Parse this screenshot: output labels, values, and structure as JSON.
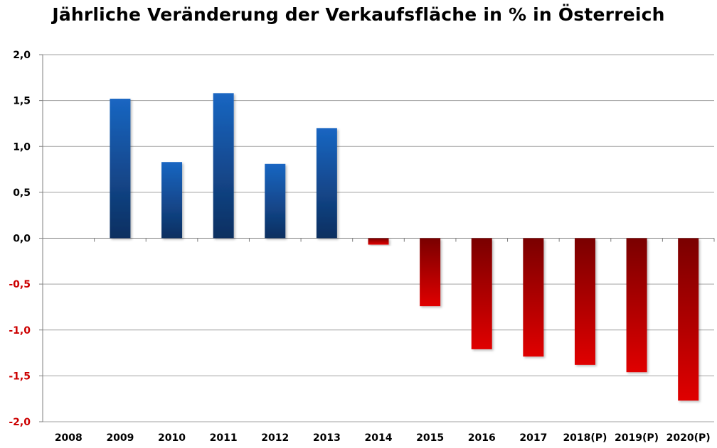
{
  "chart_data": {
    "type": "bar",
    "title": "Jährliche Veränderung der Verkaufsfläche in % in Österreich",
    "xlabel": "",
    "ylabel": "",
    "categories": [
      "2008",
      "2009",
      "2010",
      "2011",
      "2012",
      "2013",
      "2014",
      "2015",
      "2016",
      "2017",
      "2018(P)",
      "2019(P)",
      "2020(P)"
    ],
    "values": [
      0.0,
      1.52,
      0.83,
      1.58,
      0.81,
      1.2,
      -0.07,
      -0.74,
      -1.21,
      -1.29,
      -1.38,
      -1.46,
      -1.77
    ],
    "ylim": [
      -2.0,
      2.0
    ],
    "yticks": [
      2.0,
      1.5,
      1.0,
      0.5,
      0.0,
      -0.5,
      -1.0,
      -1.5,
      -2.0
    ],
    "ytick_labels": [
      "2,0",
      "1,5",
      "1,0",
      "0,5",
      "0,0",
      "-0,5",
      "-1,0",
      "-1,5",
      "-2,0"
    ],
    "grid": true,
    "legend": "none",
    "colors": {
      "positive_top": "#1a66c2",
      "positive_bottom": "#0d2f60",
      "negative_top": "#7a0000",
      "negative_bottom": "#e00000",
      "positive_tick": "#000000",
      "negative_tick": "#cc0000",
      "grid": "#a0a0a0"
    }
  }
}
